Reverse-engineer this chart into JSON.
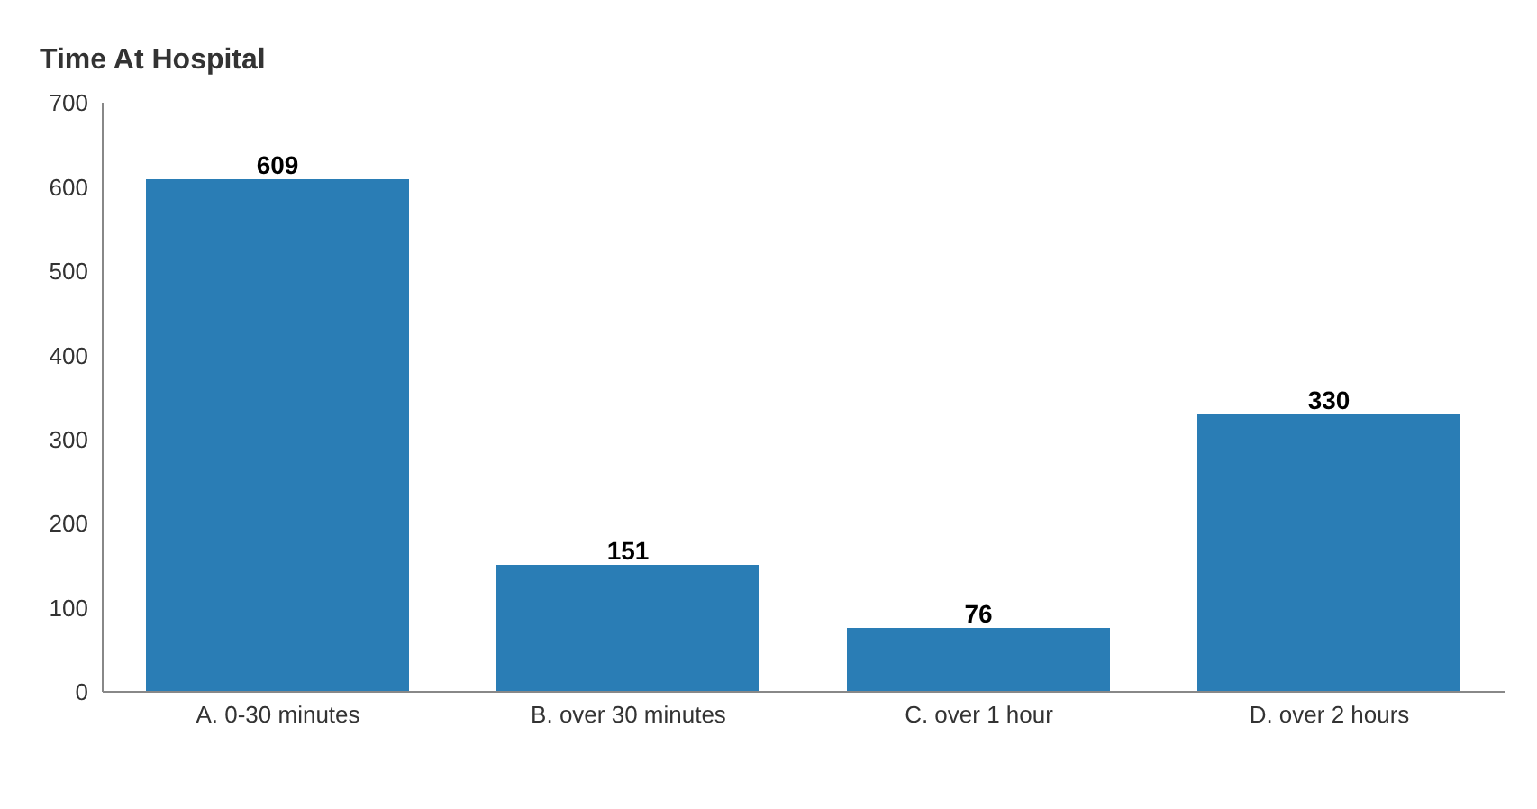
{
  "chart_data": {
    "type": "bar",
    "title": "Time At Hospital",
    "categories": [
      "A. 0-30 minutes",
      "B. over 30 minutes",
      "C. over 1 hour",
      "D. over 2 hours"
    ],
    "values": [
      609,
      151,
      76,
      330
    ],
    "color": "#2a7db5",
    "ylim": [
      0,
      700
    ],
    "yticks": [
      0,
      100,
      200,
      300,
      400,
      500,
      600,
      700
    ],
    "grid": false,
    "data_labels": true
  }
}
